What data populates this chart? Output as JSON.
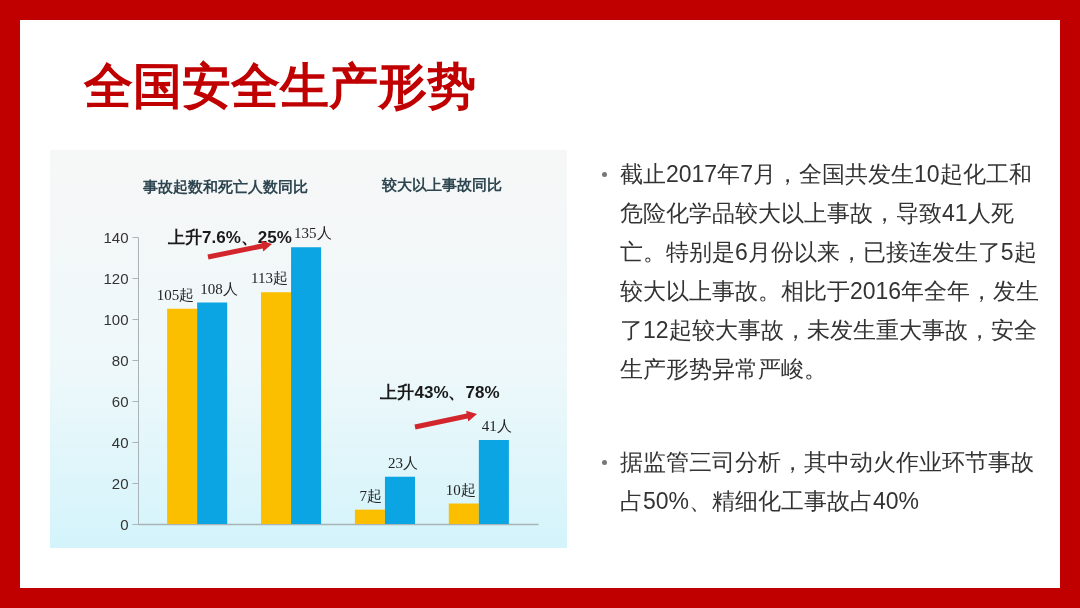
{
  "chart_data": {
    "type": "bar",
    "title": "全国安全生产形势",
    "categories": [
      null,
      null,
      null,
      null
    ],
    "series": [
      {
        "color": "#fcbf00",
        "values": [
          105,
          113,
          7,
          10
        ],
        "value_labels": [
          "105起",
          "113起",
          "7起",
          "10起"
        ]
      },
      {
        "color": "#0aa5e2",
        "values": [
          108,
          135,
          23,
          41
        ],
        "value_labels": [
          "108人",
          "135人",
          "23人",
          "41人"
        ]
      }
    ],
    "ylim": [
      0,
      140
    ],
    "yticks": [
      0,
      20,
      40,
      60,
      80,
      100,
      120,
      140
    ],
    "annotations": [
      "事故起数和死亡人数同比",
      "较大以上事故同比",
      "上升7.6%、25%",
      "上升43%、78%",
      "截止2017年7月，全国共发生10起化工和危险化学品较大以上事故，导致41人死亡。特别是6月份以来，已接连发生了5起较大以上事故。相比于2016年全年，发生了12起较大事故，未发生重大事故，安全生产形势异常严峻。",
      "据监管三司分析，其中动火作业环节事故占50%、精细化工事故占40%"
    ]
  }
}
